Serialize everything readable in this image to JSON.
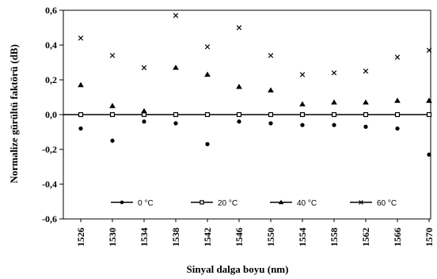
{
  "chart_data": {
    "type": "scatter",
    "title": "",
    "xlabel": "Sinyal dalga boyu (nm)",
    "ylabel": "Normalize gürültü faktörü (dB)",
    "categories": [
      "1526",
      "1530",
      "1534",
      "1538",
      "1542",
      "1546",
      "1550",
      "1554",
      "1558",
      "1562",
      "1566",
      "1570"
    ],
    "ylim": [
      -0.6,
      0.6
    ],
    "yticks": [
      0.6,
      0.4,
      0.2,
      0.0,
      -0.2,
      -0.4,
      -0.6
    ],
    "ytick_labels": [
      "0,6",
      "0,4",
      "0,2",
      "0,0",
      "-0,2",
      "-0,4",
      "-0,6"
    ],
    "grid": false,
    "legend_position": "bottom-inside",
    "series": [
      {
        "name": "0 °C",
        "marker": "circle",
        "values": [
          -0.08,
          -0.15,
          -0.04,
          -0.05,
          -0.17,
          -0.04,
          -0.05,
          -0.06,
          -0.06,
          -0.07,
          -0.08,
          -0.23
        ]
      },
      {
        "name": "20 °C",
        "marker": "square",
        "values": [
          0.0,
          0.0,
          0.0,
          0.0,
          0.0,
          0.0,
          0.0,
          0.0,
          0.0,
          0.0,
          0.0,
          0.0
        ]
      },
      {
        "name": "40 °C",
        "marker": "triangle",
        "values": [
          0.17,
          0.05,
          0.02,
          0.27,
          0.23,
          0.16,
          0.14,
          0.06,
          0.07,
          0.07,
          0.08,
          0.08
        ]
      },
      {
        "name": "60 °C",
        "marker": "x",
        "values": [
          0.44,
          0.34,
          0.27,
          0.57,
          0.39,
          0.5,
          0.34,
          0.23,
          0.24,
          0.25,
          0.33,
          0.37
        ]
      }
    ],
    "colors": {
      "marker": "#000000",
      "axis": "#000000",
      "zero_line": "#000000"
    }
  }
}
